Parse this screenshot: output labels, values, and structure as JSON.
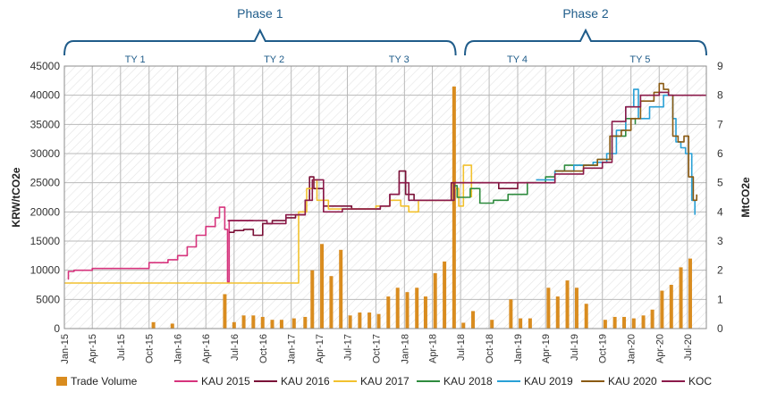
{
  "chart_data": {
    "type": "line",
    "ylabel_left": "KRW/tCO2e",
    "ylabel_right": "MtCO2e",
    "ylim_left": [
      0,
      45000
    ],
    "ylim_right": [
      0,
      9
    ],
    "y_ticks_left": [
      0,
      5000,
      10000,
      15000,
      20000,
      25000,
      30000,
      35000,
      40000,
      45000
    ],
    "y_tick_labels_left": [
      "0",
      "5000",
      "10000",
      "15000",
      "20000",
      "25000",
      "30000",
      "35000",
      "40000",
      "45000"
    ],
    "y_ticks_right": [
      0,
      1,
      2,
      3,
      4,
      5,
      6,
      7,
      8,
      9
    ],
    "y_tick_labels_right": [
      "0",
      "1",
      "2",
      "3",
      "4",
      "5",
      "6",
      "7",
      "8",
      "9"
    ],
    "x_ticks": [
      "Jan-15",
      "Apr-15",
      "Jul-15",
      "Oct-15",
      "Jan-16",
      "Apr-16",
      "Jul-16",
      "Oct-16",
      "Jan-17",
      "Apr-17",
      "Jul-17",
      "Oct-17",
      "Jan-18",
      "Apr-18",
      "Jul-18",
      "Oct-18",
      "Jan-19",
      "Apr-19",
      "Jul-19",
      "Oct-19",
      "Jan-20",
      "Apr-20",
      "Jul-20"
    ],
    "x_range": [
      "2015-01-01",
      "2020-08-31"
    ],
    "grid": true,
    "legend_position": "bottom",
    "phases": [
      {
        "label": "Phase 1",
        "start": "2015-01-01",
        "end": "2018-06-15"
      },
      {
        "label": "Phase 2",
        "start": "2018-07-15",
        "end": "2020-08-31"
      }
    ],
    "trading_years": [
      {
        "label": "TY 1",
        "start": "2015-01-01",
        "end": "2016-04-01"
      },
      {
        "label": "TY 2",
        "start": "2016-04-01",
        "end": "2017-06-15"
      },
      {
        "label": "TY 3",
        "start": "2017-06-15",
        "end": "2018-06-15"
      },
      {
        "label": "TY 4",
        "start": "2018-07-01",
        "end": "2019-07-01"
      },
      {
        "label": "TY 5",
        "start": "2019-07-01",
        "end": "2020-08-31"
      }
    ],
    "legend": [
      {
        "label": "Trade Volume",
        "color": "#d98c1f",
        "kind": "bar"
      },
      {
        "label": "KAU 2015",
        "color": "#d6337c",
        "kind": "line"
      },
      {
        "label": "KAU 2016",
        "color": "#7a1037",
        "kind": "line"
      },
      {
        "label": "KAU 2017",
        "color": "#f2c12e",
        "kind": "line"
      },
      {
        "label": "KAU 2018",
        "color": "#2e8b3e",
        "kind": "line"
      },
      {
        "label": "KAU 2019",
        "color": "#29a0d6",
        "kind": "line"
      },
      {
        "label": "KAU 2020",
        "color": "#8a5a12",
        "kind": "line"
      },
      {
        "label": "KOC",
        "color": "#8b1a4a",
        "kind": "line"
      }
    ],
    "trade_volume": {
      "name": "Trade Volume",
      "axis": "right",
      "points": [
        [
          "2015-10-15",
          0.22
        ],
        [
          "2015-12-15",
          0.17
        ],
        [
          "2016-06-01",
          1.18
        ],
        [
          "2016-07-01",
          0.22
        ],
        [
          "2016-08-01",
          0.45
        ],
        [
          "2016-09-01",
          0.45
        ],
        [
          "2016-10-01",
          0.4
        ],
        [
          "2016-11-01",
          0.3
        ],
        [
          "2016-12-01",
          0.3
        ],
        [
          "2017-01-10",
          0.35
        ],
        [
          "2017-02-15",
          0.4
        ],
        [
          "2017-03-10",
          2.0
        ],
        [
          "2017-04-10",
          2.9
        ],
        [
          "2017-05-10",
          1.8
        ],
        [
          "2017-06-10",
          2.7
        ],
        [
          "2017-07-10",
          0.45
        ],
        [
          "2017-08-10",
          0.55
        ],
        [
          "2017-09-10",
          0.55
        ],
        [
          "2017-10-10",
          0.5
        ],
        [
          "2017-11-10",
          1.1
        ],
        [
          "2017-12-10",
          1.4
        ],
        [
          "2018-01-10",
          1.25
        ],
        [
          "2018-02-10",
          1.4
        ],
        [
          "2018-03-10",
          1.1
        ],
        [
          "2018-04-10",
          1.9
        ],
        [
          "2018-05-10",
          2.3
        ],
        [
          "2018-06-10",
          8.3
        ],
        [
          "2018-07-10",
          0.2
        ],
        [
          "2018-08-10",
          0.6
        ],
        [
          "2018-10-10",
          0.3
        ],
        [
          "2018-12-10",
          1.0
        ],
        [
          "2019-01-10",
          0.35
        ],
        [
          "2019-02-10",
          0.35
        ],
        [
          "2019-04-10",
          1.4
        ],
        [
          "2019-05-10",
          1.1
        ],
        [
          "2019-06-10",
          1.65
        ],
        [
          "2019-07-10",
          1.4
        ],
        [
          "2019-08-10",
          0.85
        ],
        [
          "2019-10-10",
          0.3
        ],
        [
          "2019-11-10",
          0.4
        ],
        [
          "2019-12-10",
          0.4
        ],
        [
          "2020-01-10",
          0.35
        ],
        [
          "2020-02-10",
          0.45
        ],
        [
          "2020-03-10",
          0.65
        ],
        [
          "2020-04-10",
          1.3
        ],
        [
          "2020-05-10",
          1.5
        ],
        [
          "2020-06-10",
          2.1
        ],
        [
          "2020-07-10",
          2.4
        ]
      ]
    },
    "series": [
      {
        "name": "KAU 2015",
        "points": [
          [
            "2015-01-12",
            8500
          ],
          [
            "2015-01-14",
            9800
          ],
          [
            "2015-02-01",
            10000
          ],
          [
            "2015-04-01",
            10300
          ],
          [
            "2015-08-01",
            10300
          ],
          [
            "2015-10-01",
            11300
          ],
          [
            "2015-12-01",
            11800
          ],
          [
            "2016-01-01",
            12500
          ],
          [
            "2016-02-01",
            14000
          ],
          [
            "2016-03-01",
            16000
          ],
          [
            "2016-04-01",
            17500
          ],
          [
            "2016-05-01",
            19000
          ],
          [
            "2016-05-15",
            20800
          ],
          [
            "2016-06-01",
            17000
          ],
          [
            "2016-06-10",
            8000
          ],
          [
            "2016-06-15",
            18500
          ],
          [
            "2016-09-01",
            18500
          ]
        ]
      },
      {
        "name": "KAU 2016",
        "points": [
          [
            "2016-06-15",
            16500
          ],
          [
            "2016-07-01",
            16800
          ],
          [
            "2016-08-01",
            17000
          ],
          [
            "2016-09-01",
            16000
          ],
          [
            "2016-10-01",
            18000
          ],
          [
            "2016-11-01",
            18500
          ],
          [
            "2016-12-15",
            19000
          ],
          [
            "2017-01-15",
            19500
          ],
          [
            "2017-02-15",
            22000
          ],
          [
            "2017-03-01",
            26000
          ],
          [
            "2017-03-15",
            24000
          ],
          [
            "2017-04-15",
            21000
          ],
          [
            "2017-05-15",
            21000
          ],
          [
            "2017-06-10",
            21000
          ],
          [
            "2017-07-15",
            20500
          ],
          [
            "2017-09-01",
            20500
          ],
          [
            "2017-10-15",
            21000
          ],
          [
            "2017-11-15",
            23000
          ],
          [
            "2017-12-15",
            27000
          ],
          [
            "2018-01-05",
            23000
          ],
          [
            "2018-02-01",
            22000
          ],
          [
            "2018-03-01",
            22000
          ],
          [
            "2018-05-15",
            22000
          ],
          [
            "2018-06-01",
            25000
          ],
          [
            "2018-07-01",
            25000
          ],
          [
            "2018-09-15",
            25000
          ],
          [
            "2018-11-01",
            24000
          ],
          [
            "2019-01-01",
            25000
          ],
          [
            "2019-03-01",
            25000
          ]
        ]
      },
      {
        "name": "KAU 2017",
        "points": [
          [
            "2015-01-01",
            7800
          ],
          [
            "2017-01-20",
            7800
          ],
          [
            "2017-01-25",
            20000
          ],
          [
            "2017-02-20",
            24000
          ],
          [
            "2017-03-10",
            25500
          ],
          [
            "2017-03-25",
            22000
          ],
          [
            "2017-05-01",
            20500
          ],
          [
            "2017-06-15",
            20500
          ],
          [
            "2017-10-01",
            21000
          ],
          [
            "2017-11-15",
            22000
          ],
          [
            "2017-12-20",
            21000
          ],
          [
            "2018-01-15",
            20000
          ],
          [
            "2018-02-15",
            22000
          ],
          [
            "2018-05-15",
            22000
          ],
          [
            "2018-06-10",
            24000
          ],
          [
            "2018-06-25",
            21000
          ],
          [
            "2018-07-10",
            28000
          ],
          [
            "2018-07-25",
            28000
          ],
          [
            "2018-08-05",
            22500
          ]
        ]
      },
      {
        "name": "KAU 2018",
        "points": [
          [
            "2018-06-01",
            22000
          ],
          [
            "2018-06-10",
            24500
          ],
          [
            "2018-06-20",
            22500
          ],
          [
            "2018-08-01",
            24000
          ],
          [
            "2018-09-01",
            21500
          ],
          [
            "2018-10-15",
            22000
          ],
          [
            "2018-12-01",
            23000
          ],
          [
            "2019-02-01",
            25000
          ],
          [
            "2019-04-01",
            26000
          ],
          [
            "2019-05-01",
            27000
          ],
          [
            "2019-06-01",
            28000
          ],
          [
            "2019-08-01",
            28000
          ],
          [
            "2019-09-15",
            29000
          ],
          [
            "2019-11-01",
            33000
          ],
          [
            "2019-12-15",
            36000
          ],
          [
            "2020-01-15",
            35000
          ]
        ]
      },
      {
        "name": "KAU 2019",
        "points": [
          [
            "2019-03-01",
            25500
          ],
          [
            "2019-05-01",
            27000
          ],
          [
            "2019-07-01",
            28000
          ],
          [
            "2019-09-01",
            28500
          ],
          [
            "2019-10-15",
            30000
          ],
          [
            "2019-11-15",
            34000
          ],
          [
            "2019-12-15",
            38000
          ],
          [
            "2020-01-10",
            41000
          ],
          [
            "2020-01-25",
            36000
          ],
          [
            "2020-03-01",
            38000
          ],
          [
            "2020-04-15",
            40000
          ],
          [
            "2020-05-01",
            40000
          ],
          [
            "2020-05-15",
            36000
          ],
          [
            "2020-05-25",
            32000
          ],
          [
            "2020-06-10",
            31000
          ],
          [
            "2020-06-25",
            30000
          ],
          [
            "2020-07-15",
            22000
          ],
          [
            "2020-07-25",
            19500
          ]
        ]
      },
      {
        "name": "KAU 2020",
        "points": [
          [
            "2019-05-01",
            27000
          ],
          [
            "2019-08-01",
            28000
          ],
          [
            "2019-09-15",
            29000
          ],
          [
            "2019-10-25",
            33000
          ],
          [
            "2019-12-01",
            34000
          ],
          [
            "2020-01-01",
            36000
          ],
          [
            "2020-02-01",
            39000
          ],
          [
            "2020-03-15",
            40500
          ],
          [
            "2020-04-01",
            42000
          ],
          [
            "2020-04-15",
            41000
          ],
          [
            "2020-05-01",
            40000
          ],
          [
            "2020-05-15",
            33000
          ],
          [
            "2020-06-01",
            32000
          ],
          [
            "2020-06-20",
            33000
          ],
          [
            "2020-07-05",
            26000
          ],
          [
            "2020-07-20",
            22000
          ],
          [
            "2020-07-31",
            23000
          ]
        ]
      },
      {
        "name": "KOC",
        "points": [
          [
            "2016-06-10",
            18500
          ],
          [
            "2016-09-01",
            18500
          ],
          [
            "2016-10-15",
            18000
          ],
          [
            "2016-12-15",
            19500
          ],
          [
            "2017-02-15",
            22000
          ],
          [
            "2017-03-10",
            25500
          ],
          [
            "2017-04-15",
            20000
          ],
          [
            "2017-06-15",
            20500
          ],
          [
            "2017-10-15",
            21000
          ],
          [
            "2017-11-15",
            23000
          ],
          [
            "2017-12-15",
            25000
          ],
          [
            "2018-01-15",
            22000
          ],
          [
            "2018-05-15",
            22000
          ],
          [
            "2018-06-10",
            25000
          ],
          [
            "2018-09-15",
            25000
          ],
          [
            "2019-01-01",
            25000
          ],
          [
            "2019-05-01",
            26500
          ],
          [
            "2019-08-01",
            27500
          ],
          [
            "2019-10-01",
            28500
          ],
          [
            "2019-11-01",
            35500
          ],
          [
            "2019-12-15",
            38000
          ],
          [
            "2020-02-01",
            40000
          ],
          [
            "2020-04-01",
            40500
          ],
          [
            "2020-05-01",
            40000
          ],
          [
            "2020-08-31",
            40000
          ]
        ]
      }
    ]
  }
}
